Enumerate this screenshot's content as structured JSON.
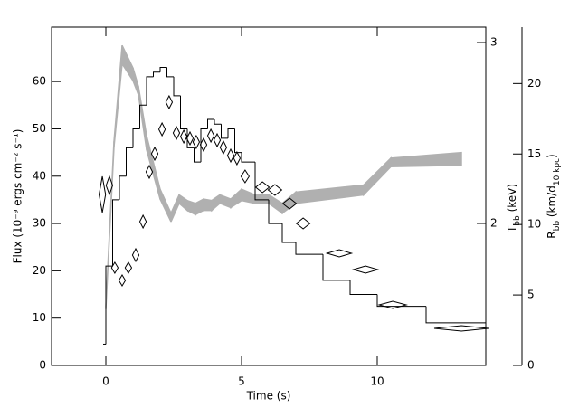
{
  "chart_data": {
    "type": "histogram",
    "xlabel": "Time (s)",
    "ylabel": "Flux (10⁻⁹ ergs cm⁻² s⁻¹)",
    "y2label": [
      {
        "text": "T"
      },
      {
        "text": "bb",
        "sub": true
      },
      {
        "text": " (keV)"
      }
    ],
    "y3label": [
      {
        "text": "R"
      },
      {
        "text": "bb",
        "sub": true
      },
      {
        "text": " (km/d"
      },
      {
        "text": "10 kpc",
        "sub": true
      },
      {
        "text": ")"
      }
    ],
    "xlim": [
      -2,
      14
    ],
    "xticks": [
      0,
      5,
      10
    ],
    "ylim": [
      0,
      71.5
    ],
    "yticks": [
      0,
      10,
      20,
      30,
      40,
      50,
      60
    ],
    "y2lim": [
      1.215,
      3.085
    ],
    "y2ticks": [
      2,
      3
    ],
    "y3lim": [
      0,
      24
    ],
    "y3ticks": [
      0,
      5,
      10,
      15,
      20
    ],
    "bins": [
      -0.1,
      0,
      0.25,
      0.5,
      0.75,
      1,
      1.25,
      1.5,
      1.75,
      2,
      2.25,
      2.5,
      2.75,
      3,
      3.25,
      3.5,
      3.75,
      4,
      4.25,
      4.5,
      4.75,
      5,
      5.5,
      6,
      6.5,
      7,
      8,
      9,
      10,
      11.8,
      14
    ],
    "counts": [
      4.5,
      21,
      35,
      40,
      46,
      50,
      55,
      61,
      62,
      63,
      61,
      57,
      50,
      46,
      43,
      50,
      52,
      51,
      48,
      50,
      45,
      43,
      35,
      30,
      26,
      23.5,
      18,
      15,
      12.5,
      9
    ],
    "color": "#000000",
    "temperature": {
      "axis": "y2",
      "color": "#000000",
      "x": [
        -0.13,
        0.13,
        0.33,
        0.6,
        0.83,
        1.1,
        1.37,
        1.6,
        1.8,
        2.07,
        2.33,
        2.6,
        2.87,
        3.1,
        3.33,
        3.6,
        3.87,
        4.1,
        4.33,
        4.6,
        4.83,
        5.13,
        5.77,
        6.23,
        6.77,
        7.27,
        8.6,
        9.57,
        10.57,
        13.1
      ],
      "values": [
        2.16,
        2.21,
        1.755,
        1.685,
        1.755,
        1.825,
        2.01,
        2.285,
        2.385,
        2.52,
        2.67,
        2.5,
        2.48,
        2.47,
        2.45,
        2.435,
        2.485,
        2.46,
        2.42,
        2.375,
        2.36,
        2.26,
        2.2,
        2.185,
        2.11,
        2.0,
        1.835,
        1.745,
        1.55,
        1.42
      ],
      "xerr": [
        0.12,
        0.12,
        0.12,
        0.12,
        0.12,
        0.12,
        0.12,
        0.12,
        0.12,
        0.12,
        0.12,
        0.12,
        0.12,
        0.12,
        0.12,
        0.12,
        0.12,
        0.12,
        0.12,
        0.12,
        0.12,
        0.15,
        0.25,
        0.25,
        0.25,
        0.25,
        0.45,
        0.45,
        0.5,
        1.0
      ],
      "yerr": [
        0.1,
        0.05,
        0.03,
        0.03,
        0.03,
        0.035,
        0.035,
        0.035,
        0.035,
        0.035,
        0.035,
        0.035,
        0.035,
        0.035,
        0.035,
        0.035,
        0.035,
        0.035,
        0.035,
        0.035,
        0.035,
        0.035,
        0.03,
        0.03,
        0.03,
        0.03,
        0.02,
        0.02,
        0.02,
        0.015
      ]
    },
    "radius": {
      "axis": "y3",
      "color": "#b0b0b0",
      "x": [
        0,
        0.3,
        0.6,
        1.0,
        1.2,
        1.5,
        2.0,
        2.4,
        2.7,
        3.0,
        3.3,
        3.6,
        3.9,
        4.2,
        4.6,
        5.0,
        5.5,
        6.0,
        6.5,
        7.0,
        9.5,
        10.5,
        13.1
      ],
      "upper": [
        4.2,
        15.9,
        22.7,
        21.1,
        19.8,
        16.3,
        12.5,
        10.8,
        12.1,
        11.7,
        11.5,
        11.8,
        11.7,
        12.1,
        11.8,
        12.5,
        12.1,
        12.1,
        11.5,
        12.3,
        12.8,
        14.7,
        15.1
      ],
      "lower": [
        4.0,
        15.5,
        21.4,
        20.2,
        19.2,
        15.3,
        11.8,
        10.2,
        11.5,
        11.0,
        10.7,
        11.0,
        11.0,
        11.5,
        11.2,
        11.7,
        11.5,
        11.5,
        10.8,
        11.5,
        12.1,
        14.1,
        14.2
      ]
    }
  }
}
